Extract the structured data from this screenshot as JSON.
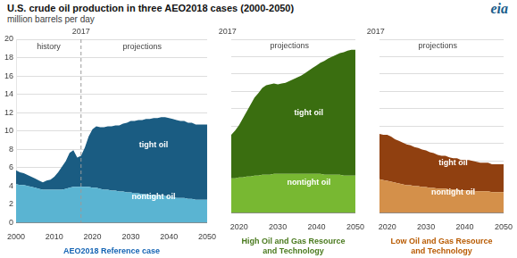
{
  "chart_data": [
    {
      "type": "area",
      "title": "U.S. crude oil production in three AEO2018 cases (2000-2050)",
      "subtitle": "million barrels per day",
      "xlabel": "AEO2018 Reference case",
      "xlabel_color": "#1464b4",
      "stacked": true,
      "grid": "y",
      "xlim": [
        2000,
        2050
      ],
      "xticks": [
        2000,
        2010,
        2020,
        2030,
        2040,
        2050
      ],
      "ylim": [
        0,
        20
      ],
      "yticks": [
        0,
        2,
        4,
        6,
        8,
        10,
        12,
        14,
        16,
        18,
        20
      ],
      "vline": 2017,
      "x": [
        2000,
        2001,
        2002,
        2003,
        2004,
        2005,
        2006,
        2007,
        2008,
        2009,
        2010,
        2011,
        2012,
        2013,
        2014,
        2015,
        2016,
        2017,
        2018,
        2019,
        2020,
        2021,
        2022,
        2023,
        2024,
        2025,
        2026,
        2027,
        2028,
        2029,
        2030,
        2031,
        2032,
        2033,
        2034,
        2035,
        2036,
        2037,
        2038,
        2039,
        2040,
        2041,
        2042,
        2043,
        2044,
        2045,
        2046,
        2047,
        2048,
        2049,
        2050
      ],
      "series": [
        {
          "name": "nontight oil",
          "color": "#5ab4d2",
          "values": [
            4.2,
            4.1,
            4.1,
            4.0,
            3.9,
            3.8,
            3.7,
            3.6,
            3.6,
            3.6,
            3.6,
            3.6,
            3.6,
            3.7,
            3.8,
            3.9,
            3.9,
            3.9,
            3.9,
            3.9,
            3.8,
            3.8,
            3.7,
            3.6,
            3.6,
            3.5,
            3.5,
            3.4,
            3.4,
            3.3,
            3.3,
            3.2,
            3.2,
            3.1,
            3.1,
            3.0,
            3.0,
            2.9,
            2.9,
            2.9,
            2.8,
            2.8,
            2.7,
            2.7,
            2.7,
            2.6,
            2.6,
            2.5,
            2.5,
            2.5,
            2.5
          ]
        },
        {
          "name": "tight oil",
          "color": "#1a5c82",
          "values": [
            1.5,
            1.4,
            1.3,
            1.2,
            1.1,
            1.0,
            0.9,
            0.8,
            1.0,
            1.1,
            1.4,
            1.9,
            2.5,
            3.0,
            3.8,
            4.0,
            3.2,
            3.4,
            4.3,
            5.5,
            6.4,
            6.7,
            6.7,
            6.8,
            6.9,
            7.0,
            7.1,
            7.2,
            7.4,
            7.6,
            7.8,
            7.9,
            8.0,
            8.1,
            8.2,
            8.3,
            8.4,
            8.5,
            8.6,
            8.6,
            8.6,
            8.5,
            8.5,
            8.4,
            8.4,
            8.3,
            8.3,
            8.2,
            8.2,
            8.2,
            8.2
          ]
        }
      ],
      "annotations": [
        {
          "text": "eia"
        },
        {
          "text": "2017",
          "x": 2017,
          "y": 20.4
        },
        {
          "text": "history",
          "x": 2008.5,
          "y": 19.2
        },
        {
          "text": "projections",
          "x": 2033,
          "y": 19.2
        },
        {
          "text": "tight oil",
          "x": 2036,
          "y": 8.5
        },
        {
          "text": "nontight oil",
          "x": 2036,
          "y": 2.8
        }
      ]
    },
    {
      "type": "area",
      "xlabel": "High Oil and Gas Resource\nand Technology",
      "xlabel_color": "#4a7a1e",
      "stacked": true,
      "grid": "y",
      "tick_labels": "x",
      "xlim": [
        2018,
        2050
      ],
      "xticks": [
        2020,
        2030,
        2040,
        2050
      ],
      "ylim": [
        0,
        20
      ],
      "yticks": [
        0,
        2,
        4,
        6,
        8,
        10,
        12,
        14,
        16,
        18,
        20
      ],
      "vline": 2017,
      "x": [
        2018,
        2019,
        2020,
        2021,
        2022,
        2023,
        2024,
        2025,
        2026,
        2027,
        2028,
        2029,
        2030,
        2031,
        2032,
        2033,
        2034,
        2035,
        2036,
        2037,
        2038,
        2039,
        2040,
        2041,
        2042,
        2043,
        2044,
        2045,
        2046,
        2047,
        2048,
        2049,
        2050
      ],
      "series": [
        {
          "name": "nontight oil",
          "color": "#78b832",
          "values": [
            4.0,
            4.0,
            4.1,
            4.1,
            4.2,
            4.2,
            4.3,
            4.3,
            4.4,
            4.4,
            4.4,
            4.5,
            4.5,
            4.5,
            4.5,
            4.5,
            4.5,
            4.5,
            4.5,
            4.5,
            4.5,
            4.5,
            4.5,
            4.5,
            4.4,
            4.4,
            4.4,
            4.4,
            4.4,
            4.3,
            4.3,
            4.3,
            4.3
          ]
        },
        {
          "name": "tight oil",
          "color": "#3a6e10",
          "values": [
            5.0,
            5.5,
            6.0,
            6.8,
            7.5,
            8.3,
            9.0,
            9.5,
            10.0,
            10.3,
            10.4,
            10.4,
            10.3,
            10.4,
            10.5,
            10.7,
            10.9,
            11.1,
            11.3,
            11.6,
            11.9,
            12.2,
            12.5,
            12.8,
            13.1,
            13.4,
            13.6,
            13.8,
            14.0,
            14.2,
            14.4,
            14.5,
            14.5
          ]
        }
      ],
      "annotations": [
        {
          "text": "2017",
          "x": 2017,
          "y": 20.4
        },
        {
          "text": "projections",
          "x": 2033,
          "y": 19.2
        },
        {
          "text": "tight oil",
          "x": 2038,
          "y": 11.5
        },
        {
          "text": "nontight oil",
          "x": 2038,
          "y": 3.5
        }
      ]
    },
    {
      "type": "area",
      "xlabel": "Low Oil and Gas Resource\nand Technology",
      "xlabel_color": "#b85a00",
      "stacked": true,
      "grid": "y",
      "tick_labels": "x",
      "xlim": [
        2018,
        2050
      ],
      "xticks": [
        2020,
        2030,
        2040,
        2050
      ],
      "ylim": [
        0,
        20
      ],
      "yticks": [
        0,
        2,
        4,
        6,
        8,
        10,
        12,
        14,
        16,
        18,
        20
      ],
      "vline": 2017,
      "x": [
        2018,
        2019,
        2020,
        2021,
        2022,
        2023,
        2024,
        2025,
        2026,
        2027,
        2028,
        2029,
        2030,
        2031,
        2032,
        2033,
        2034,
        2035,
        2036,
        2037,
        2038,
        2039,
        2040,
        2041,
        2042,
        2043,
        2044,
        2045,
        2046,
        2047,
        2048,
        2049,
        2050
      ],
      "series": [
        {
          "name": "nontight oil",
          "color": "#d4904a",
          "values": [
            3.9,
            3.8,
            3.7,
            3.6,
            3.5,
            3.4,
            3.3,
            3.2,
            3.2,
            3.1,
            3.1,
            3.0,
            3.0,
            2.9,
            2.9,
            2.8,
            2.8,
            2.8,
            2.7,
            2.7,
            2.7,
            2.6,
            2.6,
            2.6,
            2.6,
            2.5,
            2.5,
            2.5,
            2.5,
            2.4,
            2.4,
            2.4,
            2.4
          ]
        },
        {
          "name": "tight oil",
          "color": "#904010",
          "values": [
            5.2,
            5.2,
            5.3,
            5.2,
            5.0,
            4.9,
            4.8,
            4.7,
            4.6,
            4.5,
            4.4,
            4.3,
            4.2,
            4.1,
            4.0,
            3.9,
            3.8,
            3.8,
            3.7,
            3.6,
            3.6,
            3.5,
            3.5,
            3.5,
            3.4,
            3.4,
            3.3,
            3.3,
            3.3,
            3.2,
            3.2,
            3.2,
            3.2
          ]
        }
      ],
      "annotations": [
        {
          "text": "2017",
          "x": 2017,
          "y": 20.4
        },
        {
          "text": "projections",
          "x": 2033,
          "y": 19.2
        },
        {
          "text": "tight oil",
          "x": 2037,
          "y": 5.8
        },
        {
          "text": "nontight oil",
          "x": 2037,
          "y": 2.4
        }
      ]
    }
  ]
}
